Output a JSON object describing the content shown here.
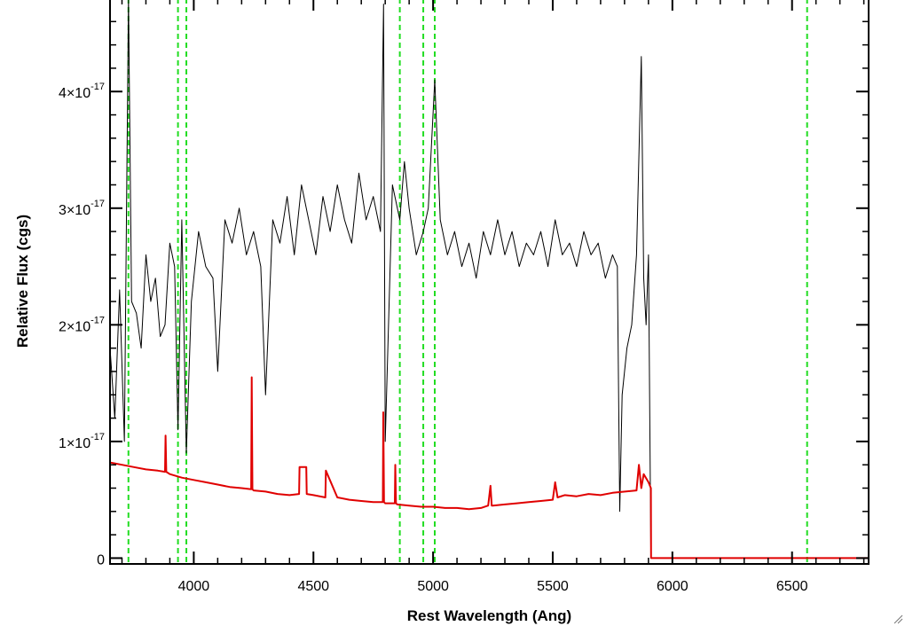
{
  "chart_data": {
    "type": "line",
    "title": "",
    "xlabel": "Rest Wavelength (Ang)",
    "ylabel": "Relative Flux (cgs)",
    "xlim": [
      3650,
      6820
    ],
    "ylim": [
      -5e-19,
      4.8e-17
    ],
    "x_ticks": [
      {
        "value": 4000,
        "label": "4000"
      },
      {
        "value": 4500,
        "label": "4500"
      },
      {
        "value": 5000,
        "label": "5000"
      },
      {
        "value": 5500,
        "label": "5500"
      },
      {
        "value": 6000,
        "label": "6000"
      },
      {
        "value": 6500,
        "label": "6500"
      }
    ],
    "y_ticks": [
      {
        "value": 0,
        "mantissa": "0",
        "exponent": ""
      },
      {
        "value": 1e-17,
        "mantissa": "1×10",
        "exponent": "-17"
      },
      {
        "value": 2e-17,
        "mantissa": "2×10",
        "exponent": "-17"
      },
      {
        "value": 3e-17,
        "mantissa": "3×10",
        "exponent": "-17"
      },
      {
        "value": 4e-17,
        "mantissa": "4×10",
        "exponent": "-17"
      }
    ],
    "reference_lines": [
      3727,
      3934,
      3969,
      4861,
      4959,
      5007,
      6563
    ],
    "series": [
      {
        "color": "#000000",
        "x": [
          3650,
          3670,
          3690,
          3710,
          3727,
          3740,
          3760,
          3780,
          3800,
          3820,
          3840,
          3860,
          3880,
          3900,
          3920,
          3934,
          3950,
          3969,
          3990,
          4020,
          4050,
          4080,
          4100,
          4130,
          4160,
          4190,
          4220,
          4250,
          4280,
          4300,
          4330,
          4360,
          4390,
          4420,
          4450,
          4480,
          4510,
          4540,
          4570,
          4600,
          4630,
          4660,
          4690,
          4720,
          4750,
          4780,
          4793,
          4800,
          4830,
          4861,
          4880,
          4900,
          4930,
          4959,
          4980,
          5007,
          5030,
          5060,
          5090,
          5120,
          5150,
          5180,
          5210,
          5240,
          5270,
          5300,
          5330,
          5360,
          5390,
          5420,
          5450,
          5480,
          5510,
          5540,
          5570,
          5600,
          5630,
          5660,
          5690,
          5720,
          5750,
          5770,
          5780,
          5790,
          5810,
          5830,
          5850,
          5870,
          5880,
          5890,
          5900,
          5910
        ],
        "y": [
          1.8e-17,
          1.2e-17,
          2.3e-17,
          1e-17,
          4.8e-17,
          2.2e-17,
          2.1e-17,
          1.8e-17,
          2.6e-17,
          2.2e-17,
          2.4e-17,
          1.9e-17,
          2e-17,
          2.7e-17,
          2.5e-17,
          1.1e-17,
          2.9e-17,
          9e-18,
          2.2e-17,
          2.8e-17,
          2.5e-17,
          2.4e-17,
          1.6e-17,
          2.9e-17,
          2.7e-17,
          3e-17,
          2.6e-17,
          2.8e-17,
          2.5e-17,
          1.4e-17,
          2.9e-17,
          2.7e-17,
          3.1e-17,
          2.6e-17,
          3.2e-17,
          2.9e-17,
          2.6e-17,
          3.1e-17,
          2.8e-17,
          3.2e-17,
          2.9e-17,
          2.7e-17,
          3.3e-17,
          2.9e-17,
          3.1e-17,
          2.8e-17,
          4.75e-17,
          1e-17,
          3.2e-17,
          2.9e-17,
          3.4e-17,
          3e-17,
          2.6e-17,
          2.8e-17,
          3e-17,
          4.1e-17,
          2.9e-17,
          2.6e-17,
          2.8e-17,
          2.5e-17,
          2.7e-17,
          2.4e-17,
          2.8e-17,
          2.6e-17,
          2.9e-17,
          2.6e-17,
          2.8e-17,
          2.5e-17,
          2.7e-17,
          2.6e-17,
          2.8e-17,
          2.5e-17,
          2.9e-17,
          2.6e-17,
          2.7e-17,
          2.5e-17,
          2.8e-17,
          2.6e-17,
          2.7e-17,
          2.4e-17,
          2.6e-17,
          2.5e-17,
          4e-18,
          1.4e-17,
          1.8e-17,
          2e-17,
          2.6e-17,
          4.3e-17,
          2.4e-17,
          2e-17,
          2.6e-17,
          0.0
        ]
      },
      {
        "color": "#e00000",
        "x": [
          3650,
          3700,
          3750,
          3800,
          3850,
          3880,
          3882,
          3885,
          3900,
          3950,
          4000,
          4050,
          4100,
          4150,
          4200,
          4240,
          4242,
          4245,
          4250,
          4300,
          4350,
          4400,
          4440,
          4442,
          4470,
          4472,
          4500,
          4550,
          4552,
          4600,
          4650,
          4700,
          4750,
          4790,
          4792,
          4795,
          4800,
          4840,
          4842,
          4845,
          4850,
          4900,
          4950,
          5000,
          5050,
          5100,
          5150,
          5200,
          5230,
          5240,
          5245,
          5250,
          5300,
          5350,
          5400,
          5450,
          5500,
          5510,
          5520,
          5550,
          5600,
          5650,
          5700,
          5750,
          5850,
          5860,
          5870,
          5880,
          5900,
          5910,
          5911,
          6000,
          6500,
          6820
        ],
        "y": [
          8.2e-18,
          8e-18,
          7.8e-18,
          7.6e-18,
          7.5e-18,
          7.4e-18,
          1.05e-17,
          7.4e-18,
          7.2e-18,
          6.9e-18,
          6.7e-18,
          6.5e-18,
          6.3e-18,
          6.1e-18,
          6e-18,
          5.9e-18,
          1.55e-17,
          5.9e-18,
          5.8e-18,
          5.7e-18,
          5.5e-18,
          5.4e-18,
          5.5e-18,
          7.8e-18,
          7.8e-18,
          5.5e-18,
          5.4e-18,
          5.2e-18,
          7.5e-18,
          5.2e-18,
          5e-18,
          4.9e-18,
          4.8e-18,
          4.8e-18,
          1.25e-17,
          4.8e-18,
          4.7e-18,
          4.7e-18,
          8e-18,
          4.7e-18,
          4.6e-18,
          4.5e-18,
          4.4e-18,
          4.4e-18,
          4.3e-18,
          4.3e-18,
          4.2e-18,
          4.3e-18,
          4.5e-18,
          6.2e-18,
          4.5e-18,
          4.5e-18,
          4.6e-18,
          4.7e-18,
          4.8e-18,
          4.9e-18,
          5e-18,
          6.5e-18,
          5.2e-18,
          5.4e-18,
          5.3e-18,
          5.5e-18,
          5.4e-18,
          5.6e-18,
          5.8e-18,
          8e-18,
          6e-18,
          7.2e-18,
          6.5e-18,
          6e-18,
          0.0,
          0.0,
          0.0,
          0.0
        ]
      }
    ]
  }
}
